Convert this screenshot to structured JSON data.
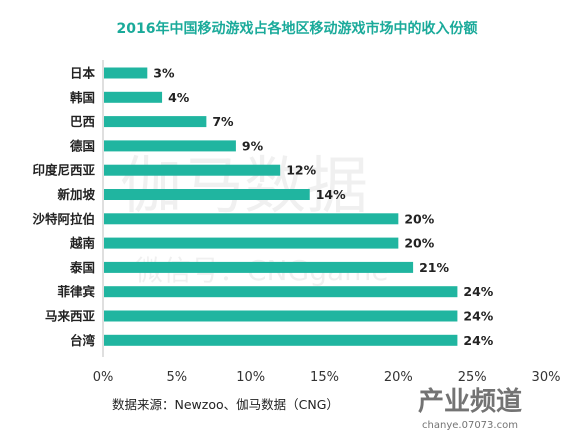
{
  "chart_data": {
    "type": "bar",
    "orientation": "horizontal",
    "title": "2016年中国移动游戏占各地区移动游戏市场中的收入份额",
    "categories": [
      "日本",
      "韩国",
      "巴西",
      "德国",
      "印度尼西亚",
      "新加坡",
      "沙特阿拉伯",
      "越南",
      "泰国",
      "菲律宾",
      "马来西亚",
      "台湾"
    ],
    "values": [
      3,
      4,
      7,
      9,
      12,
      14,
      20,
      20,
      21,
      24,
      24,
      24
    ],
    "value_labels": [
      "3%",
      "4%",
      "7%",
      "9%",
      "12%",
      "14%",
      "20%",
      "20%",
      "21%",
      "24%",
      "24%",
      "24%"
    ],
    "xlim": [
      0,
      30
    ],
    "x_ticks": [
      "0%",
      "5%",
      "10%",
      "15%",
      "20%",
      "25%",
      "30%"
    ],
    "grid": false,
    "legend": "none",
    "source": "数据来源：Newzoo、伽马数据（CNG）"
  },
  "watermark": {
    "text_main": "伽马数据",
    "text_sub": "微信号：CNGgame",
    "corner_logo": "产业频道",
    "corner_url": "chanye.07073.com"
  },
  "colors": {
    "bar": "#20b5a0",
    "title": "#1aaa9a",
    "axis": "#bfbfbf"
  }
}
